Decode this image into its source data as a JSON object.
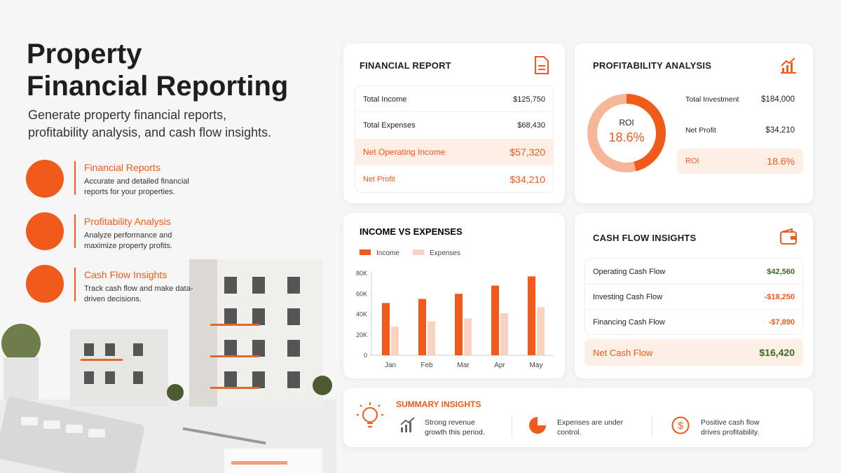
{
  "header": {
    "title_lines": [
      "Property",
      "Financial Reporting"
    ],
    "subtitle": "Generate property financial reports, profitability analysis, and cash flow insights."
  },
  "features": [
    {
      "title": "Financial Reports",
      "description": "Accurate and detailed financial reports for your properties."
    },
    {
      "title": "Profitability Analysis",
      "description": "Analyze performance and maximize property profits."
    },
    {
      "title": "Cash Flow Insights",
      "description": "Track cash flow and make data-driven decisions."
    }
  ],
  "financial_report": {
    "title": "FINANCIAL REPORT",
    "rows": [
      {
        "label": "Total Income",
        "value": "$125,750"
      },
      {
        "label": "Total Expenses",
        "value": "$68,430"
      },
      {
        "label": "Net Operating Income",
        "value": "$57,320"
      },
      {
        "label": "Net Profit",
        "value": "$34,210"
      }
    ]
  },
  "profitability": {
    "title": "PROFITABILITY ANALYSIS",
    "donut_label": "ROI",
    "donut_value": "18.6%",
    "rows": [
      {
        "label": "Total Investment",
        "value": "$184,000"
      },
      {
        "label": "Net Profit",
        "value": "$34,210"
      },
      {
        "label": "ROI",
        "value": "18.6%"
      }
    ]
  },
  "chart_data": {
    "type": "bar",
    "title": "INCOME VS EXPENSES",
    "categories": [
      "Jan",
      "Feb",
      "Mar",
      "Apr",
      "May"
    ],
    "series": [
      {
        "name": "Income",
        "color": "#f25a1c",
        "values": [
          51000,
          55000,
          60000,
          68000,
          77000
        ]
      },
      {
        "name": "Expenses",
        "color": "#fbd2bf",
        "values": [
          28000,
          33000,
          36000,
          41000,
          47000
        ]
      }
    ],
    "ylim": [
      0,
      80000
    ],
    "yticks": [
      0,
      {
        "value": 20000,
        "label": "20K"
      },
      {
        "value": 40000,
        "label": "40K"
      },
      {
        "value": 60000,
        "label": "60K"
      },
      {
        "value": 80000,
        "label": "80K"
      }
    ],
    "grid": false
  },
  "cash_flow": {
    "title": "CASH FLOW INSIGHTS",
    "rows": [
      {
        "label": "Operating Cash Flow",
        "value": "$42,560"
      },
      {
        "label": "Investing Cash Flow",
        "value": "-$18,250"
      },
      {
        "label": "Financing Cash Flow",
        "value": "-$7,890"
      }
    ],
    "total": {
      "label": "Net Cash Flow",
      "value": "$16,420"
    }
  },
  "summary": {
    "title": "SUMMARY INSIGHTS",
    "items": [
      "Strong revenue growth this period.",
      "Expenses are under control.",
      "Positive cash flow drives profitability."
    ]
  }
}
